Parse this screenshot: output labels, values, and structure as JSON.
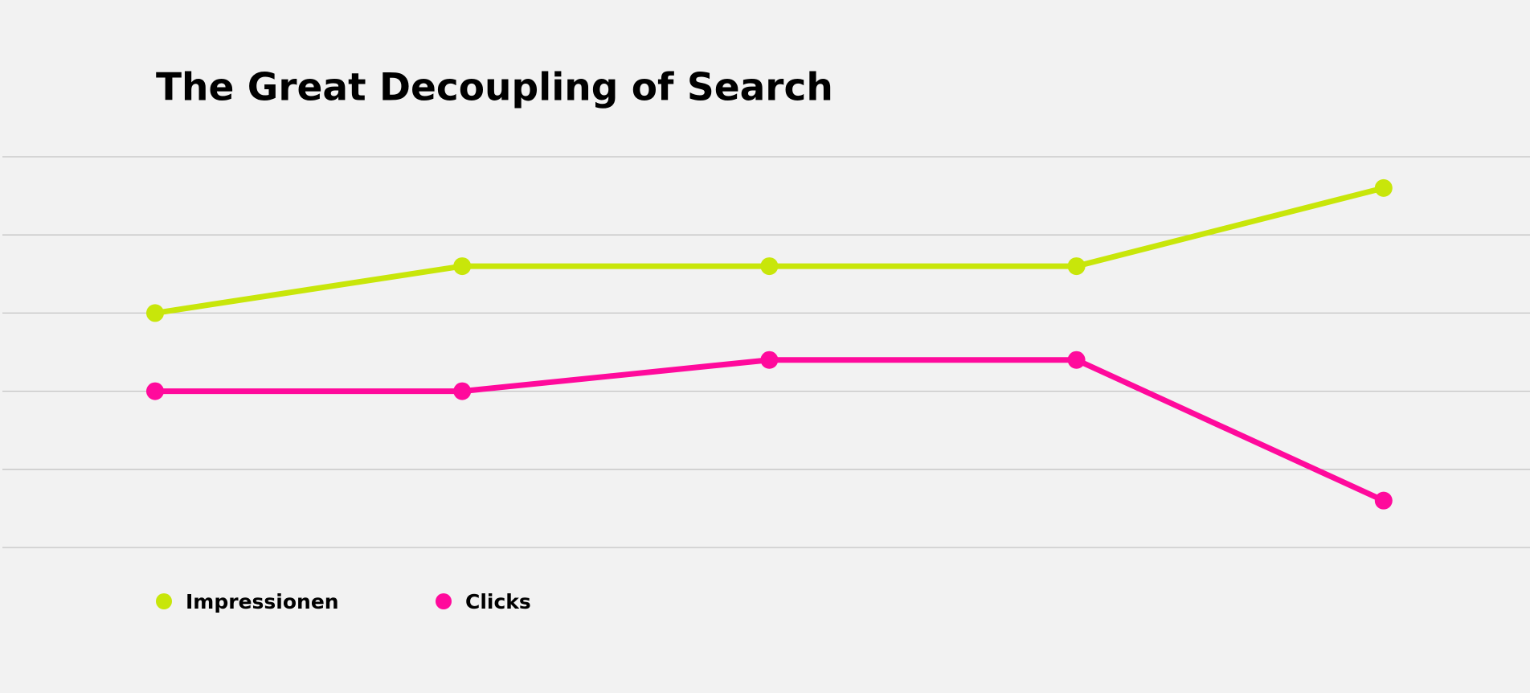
{
  "chart_data": {
    "type": "line",
    "title": "The Great Decoupling of Search",
    "categories": [
      null,
      null,
      null,
      null,
      null
    ],
    "series": [
      {
        "name": "Impressionen",
        "color": "#c8e60a",
        "values": [
          3,
          3.6,
          3.6,
          3.6,
          4.6
        ]
      },
      {
        "name": "Clicks",
        "color": "#ff0a9c",
        "values": [
          2,
          2,
          2.4,
          2.4,
          0.6
        ]
      }
    ],
    "ylim": [
      0,
      5
    ],
    "yticks": [
      0,
      1,
      2,
      3,
      4,
      5
    ],
    "grid": true,
    "legend": "bottom"
  }
}
